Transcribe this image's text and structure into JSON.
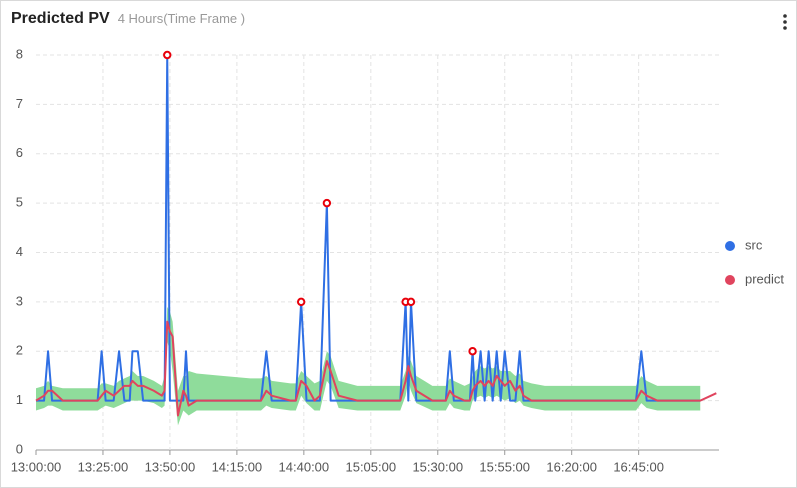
{
  "chart_data": {
    "type": "line",
    "title": "Predicted PV",
    "subtitle": "4 Hours(Time Frame )",
    "x": [
      "13:00:00",
      "13:03:00",
      "13:04:30",
      "13:06:00",
      "13:10:00",
      "13:15:00",
      "13:20:00",
      "13:23:00",
      "13:24:30",
      "13:26:00",
      "13:29:00",
      "13:31:00",
      "13:33:00",
      "13:35:00",
      "13:36:00",
      "13:38:00",
      "13:40:00",
      "13:44:00",
      "13:47:00",
      "13:48:00",
      "13:49:00",
      "13:50:00",
      "13:51:00",
      "13:53:00",
      "13:55:00",
      "13:56:00",
      "13:57:00",
      "14:00:00",
      "14:10:00",
      "14:20:00",
      "14:24:00",
      "14:26:00",
      "14:28:00",
      "14:35:00",
      "14:37:00",
      "14:39:00",
      "14:41:00",
      "14:44:00",
      "14:46:00",
      "14:48:36",
      "14:50:00",
      "14:53:00",
      "15:00:00",
      "15:10:00",
      "15:16:00",
      "15:18:00",
      "15:19:00",
      "15:20:00",
      "15:22:00",
      "15:28:00",
      "15:33:00",
      "15:34:30",
      "15:36:00",
      "15:40:00",
      "15:42:00",
      "15:43:00",
      "15:44:00",
      "15:46:00",
      "15:47:30",
      "15:49:00",
      "15:50:30",
      "15:52:00",
      "15:53:30",
      "15:55:00",
      "15:57:00",
      "15:59:00",
      "16:00:36",
      "16:02:00",
      "16:05:00",
      "16:10:00",
      "16:20:00",
      "16:30:00",
      "16:40:00",
      "16:44:00",
      "16:46:00",
      "16:48:00",
      "16:52:00",
      "17:00:00",
      "17:08:00",
      "17:12:00",
      "17:14:00"
    ],
    "series": [
      {
        "name": "src",
        "color": "#2f6fe4",
        "values": [
          1,
          1,
          2,
          1,
          1,
          1,
          1,
          1,
          2,
          1,
          1,
          2,
          1,
          1,
          2,
          2,
          1,
          1,
          1,
          1,
          8,
          1,
          1,
          1,
          1,
          2,
          1,
          1,
          1,
          1,
          1,
          2,
          1,
          1,
          1,
          3,
          1,
          1,
          1,
          5,
          1,
          1,
          1,
          1,
          1,
          3,
          1,
          3,
          1,
          1,
          1,
          2,
          1,
          1,
          1,
          2,
          1,
          2,
          1,
          2,
          1,
          2,
          1,
          2,
          1,
          1,
          2,
          1,
          1,
          1,
          1,
          1,
          1,
          1,
          2,
          1,
          1,
          1,
          1,
          null,
          null
        ]
      },
      {
        "name": "predict",
        "color": "#e0445e",
        "values": [
          1,
          1.1,
          1.2,
          1.2,
          1,
          1,
          1,
          1,
          1.1,
          1.2,
          1.1,
          1.2,
          1.3,
          1.3,
          1.4,
          1.3,
          1.3,
          1.2,
          1.1,
          1.2,
          2.6,
          2.4,
          2.3,
          0.7,
          1.2,
          1.1,
          0.9,
          1,
          1,
          1,
          1,
          1.2,
          1.1,
          1,
          1,
          1.4,
          1.3,
          1,
          1.1,
          1.8,
          1.6,
          1.1,
          1,
          1,
          1,
          1.4,
          1.7,
          1.5,
          1.2,
          1,
          1,
          1.2,
          1.1,
          1,
          1,
          1.2,
          1.3,
          1.4,
          1.3,
          1.4,
          1.3,
          1.5,
          1.4,
          1.3,
          1.4,
          1.2,
          1.3,
          1.1,
          1,
          1,
          1,
          1,
          1,
          1,
          1.2,
          1.1,
          1,
          1,
          1,
          1.1,
          1.15
        ]
      }
    ],
    "band": {
      "color": "#8fdc9b",
      "upper": [
        1.25,
        1.3,
        1.4,
        1.3,
        1.25,
        1.25,
        1.25,
        1.25,
        1.35,
        1.35,
        1.3,
        1.4,
        1.45,
        1.5,
        1.6,
        1.5,
        1.5,
        1.4,
        1.3,
        1.5,
        2.9,
        2.8,
        2.6,
        1.2,
        1.5,
        1.5,
        1.6,
        1.55,
        1.5,
        1.45,
        1.45,
        1.5,
        1.4,
        1.35,
        1.35,
        1.6,
        1.5,
        1.35,
        1.4,
        2.0,
        1.9,
        1.4,
        1.3,
        1.3,
        1.3,
        1.6,
        1.9,
        1.8,
        1.5,
        1.3,
        1.3,
        1.45,
        1.4,
        1.3,
        1.35,
        1.5,
        1.6,
        1.7,
        1.65,
        1.7,
        1.65,
        1.7,
        1.6,
        1.6,
        1.6,
        1.5,
        1.55,
        1.4,
        1.35,
        1.3,
        1.3,
        1.3,
        1.3,
        1.3,
        1.5,
        1.4,
        1.3,
        1.3,
        1.3,
        null,
        null
      ],
      "lower": [
        0.8,
        0.85,
        0.9,
        0.9,
        0.8,
        0.8,
        0.8,
        0.8,
        0.85,
        0.9,
        0.85,
        0.9,
        0.95,
        1.0,
        1.0,
        1.0,
        1.0,
        0.95,
        0.85,
        0.9,
        2.2,
        2.0,
        1.6,
        0.5,
        0.8,
        0.75,
        0.7,
        0.8,
        0.8,
        0.8,
        0.8,
        0.9,
        0.85,
        0.8,
        0.8,
        1.1,
        0.95,
        0.8,
        0.8,
        1.4,
        1.3,
        0.85,
        0.8,
        0.8,
        0.8,
        1.1,
        1.4,
        1.2,
        0.95,
        0.8,
        0.8,
        0.95,
        0.85,
        0.8,
        0.8,
        1.0,
        1.05,
        1.1,
        1.05,
        1.1,
        1.05,
        1.1,
        1.05,
        1.0,
        1.05,
        0.95,
        1.0,
        0.9,
        0.85,
        0.8,
        0.8,
        0.8,
        0.8,
        0.8,
        0.95,
        0.85,
        0.8,
        0.8,
        0.8,
        null,
        null
      ]
    },
    "anomaly_points": [
      20,
      35,
      39,
      45,
      47,
      55
    ],
    "anomaly_color": "#e8000b",
    "xlim": [
      "13:00:00",
      "17:15:00"
    ],
    "xticks": [
      "13:00:00",
      "13:25:00",
      "13:50:00",
      "14:15:00",
      "14:40:00",
      "15:05:00",
      "15:30:00",
      "15:55:00",
      "16:20:00",
      "16:45:00"
    ],
    "ylim": [
      0,
      8
    ],
    "yticks": [
      0,
      1,
      2,
      3,
      4,
      5,
      6,
      7,
      8
    ],
    "grid": true,
    "legend": "right"
  }
}
